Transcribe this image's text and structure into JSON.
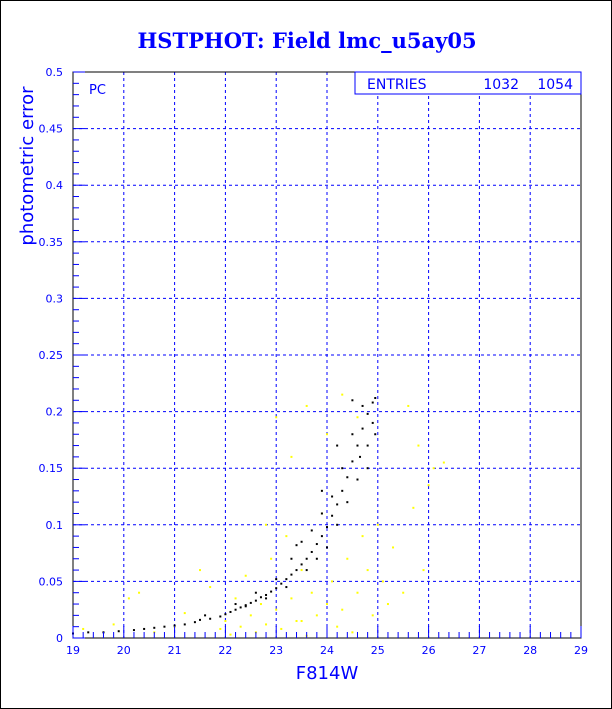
{
  "chart_data": {
    "type": "scatter",
    "title": "HSTPHOT: Field lmc_u5ay05",
    "xlabel": "F814W",
    "ylabel": "photometric error",
    "annotation": "PC",
    "stats_box": {
      "label": "ENTRIES",
      "values": [
        "1032",
        "1054"
      ]
    },
    "xlim": [
      19,
      29
    ],
    "ylim": [
      0,
      0.5
    ],
    "x_ticks": [
      "19",
      "20",
      "21",
      "22",
      "23",
      "24",
      "25",
      "26",
      "27",
      "28",
      "29"
    ],
    "y_ticks": [
      "0",
      "0.05",
      "0.1",
      "0.15",
      "0.2",
      "0.25",
      "0.3",
      "0.35",
      "0.4",
      "0.45",
      "0.5"
    ],
    "grid": true,
    "colors": {
      "frame": "#000000",
      "grid": "#0000ff",
      "text": "#0000ff",
      "series_black": "#000000",
      "series_yellow": "#ffff00"
    },
    "series": [
      {
        "color": "#000000",
        "points": [
          [
            19.0,
            0.004
          ],
          [
            19.3,
            0.005
          ],
          [
            19.6,
            0.005
          ],
          [
            19.9,
            0.006
          ],
          [
            20.2,
            0.007
          ],
          [
            20.4,
            0.008
          ],
          [
            20.6,
            0.009
          ],
          [
            20.8,
            0.01
          ],
          [
            21.0,
            0.011
          ],
          [
            21.2,
            0.012
          ],
          [
            21.4,
            0.014
          ],
          [
            21.5,
            0.016
          ],
          [
            21.7,
            0.017
          ],
          [
            21.9,
            0.019
          ],
          [
            22.0,
            0.021
          ],
          [
            22.1,
            0.023
          ],
          [
            22.2,
            0.025
          ],
          [
            22.3,
            0.027
          ],
          [
            22.4,
            0.029
          ],
          [
            22.5,
            0.031
          ],
          [
            22.6,
            0.033
          ],
          [
            22.7,
            0.036
          ],
          [
            22.8,
            0.038
          ],
          [
            22.9,
            0.041
          ],
          [
            23.0,
            0.044
          ],
          [
            23.1,
            0.048
          ],
          [
            23.2,
            0.052
          ],
          [
            23.3,
            0.056
          ],
          [
            23.4,
            0.06
          ],
          [
            23.5,
            0.065
          ],
          [
            23.6,
            0.07
          ],
          [
            23.7,
            0.076
          ],
          [
            23.8,
            0.083
          ],
          [
            23.9,
            0.09
          ],
          [
            24.0,
            0.098
          ],
          [
            24.1,
            0.108
          ],
          [
            24.2,
            0.118
          ],
          [
            24.3,
            0.13
          ],
          [
            24.4,
            0.142
          ],
          [
            24.5,
            0.156
          ],
          [
            24.6,
            0.17
          ],
          [
            24.7,
            0.185
          ],
          [
            24.8,
            0.198
          ],
          [
            24.9,
            0.208
          ],
          [
            24.95,
            0.212
          ],
          [
            21.6,
            0.02
          ],
          [
            22.2,
            0.03
          ],
          [
            22.6,
            0.04
          ],
          [
            23.0,
            0.052
          ],
          [
            23.3,
            0.07
          ],
          [
            23.5,
            0.085
          ],
          [
            23.7,
            0.095
          ],
          [
            23.9,
            0.11
          ],
          [
            24.1,
            0.125
          ],
          [
            24.3,
            0.15
          ],
          [
            24.5,
            0.18
          ],
          [
            24.7,
            0.205
          ],
          [
            24.9,
            0.19
          ],
          [
            24.8,
            0.17
          ],
          [
            24.6,
            0.14
          ],
          [
            24.4,
            0.12
          ],
          [
            24.2,
            0.1
          ],
          [
            24.0,
            0.08
          ],
          [
            23.8,
            0.07
          ],
          [
            23.6,
            0.06
          ],
          [
            23.2,
            0.045
          ],
          [
            22.8,
            0.035
          ],
          [
            22.4,
            0.028
          ],
          [
            23.9,
            0.13
          ],
          [
            24.2,
            0.17
          ],
          [
            24.5,
            0.21
          ],
          [
            23.4,
            0.082
          ],
          [
            24.8,
            0.15
          ],
          [
            24.95,
            0.18
          ],
          [
            24.65,
            0.16
          ]
        ]
      },
      {
        "color": "#ffff00",
        "points": [
          [
            19.2,
            0.008
          ],
          [
            19.8,
            0.012
          ],
          [
            20.1,
            0.035
          ],
          [
            20.3,
            0.04
          ],
          [
            20.6,
            0.005
          ],
          [
            21.0,
            0.01
          ],
          [
            21.2,
            0.022
          ],
          [
            21.5,
            0.06
          ],
          [
            21.7,
            0.045
          ],
          [
            21.9,
            0.008
          ],
          [
            22.0,
            0.015
          ],
          [
            22.1,
            0.003
          ],
          [
            22.3,
            0.01
          ],
          [
            22.4,
            0.055
          ],
          [
            22.5,
            0.02
          ],
          [
            22.6,
            0.005
          ],
          [
            22.7,
            0.03
          ],
          [
            22.8,
            0.012
          ],
          [
            22.9,
            0.07
          ],
          [
            23.0,
            0.025
          ],
          [
            23.1,
            0.008
          ],
          [
            23.2,
            0.09
          ],
          [
            23.3,
            0.035
          ],
          [
            23.4,
            0.015
          ],
          [
            23.5,
            0.06
          ],
          [
            23.6,
            0.002
          ],
          [
            23.7,
            0.04
          ],
          [
            23.8,
            0.02
          ],
          [
            23.9,
            0.11
          ],
          [
            24.0,
            0.03
          ],
          [
            24.1,
            0.05
          ],
          [
            24.2,
            0.01
          ],
          [
            24.3,
            0.025
          ],
          [
            24.4,
            0.07
          ],
          [
            24.5,
            0.005
          ],
          [
            24.6,
            0.04
          ],
          [
            24.7,
            0.09
          ],
          [
            24.8,
            0.06
          ],
          [
            24.9,
            0.02
          ],
          [
            25.0,
            0.1
          ],
          [
            25.1,
            0.05
          ],
          [
            25.2,
            0.03
          ],
          [
            25.3,
            0.08
          ],
          [
            25.5,
            0.04
          ],
          [
            25.7,
            0.115
          ],
          [
            25.9,
            0.06
          ],
          [
            26.1,
            0.15
          ],
          [
            26.3,
            0.155
          ],
          [
            25.6,
            0.205
          ],
          [
            23.0,
            0.195
          ],
          [
            23.6,
            0.205
          ],
          [
            24.3,
            0.215
          ],
          [
            24.0,
            0.18
          ],
          [
            22.8,
            0.1
          ],
          [
            23.3,
            0.16
          ],
          [
            25.8,
            0.17
          ],
          [
            26.0,
            0.135
          ],
          [
            24.6,
            0.195
          ],
          [
            23.5,
            0.015
          ],
          [
            22.2,
            0.035
          ]
        ]
      }
    ]
  }
}
